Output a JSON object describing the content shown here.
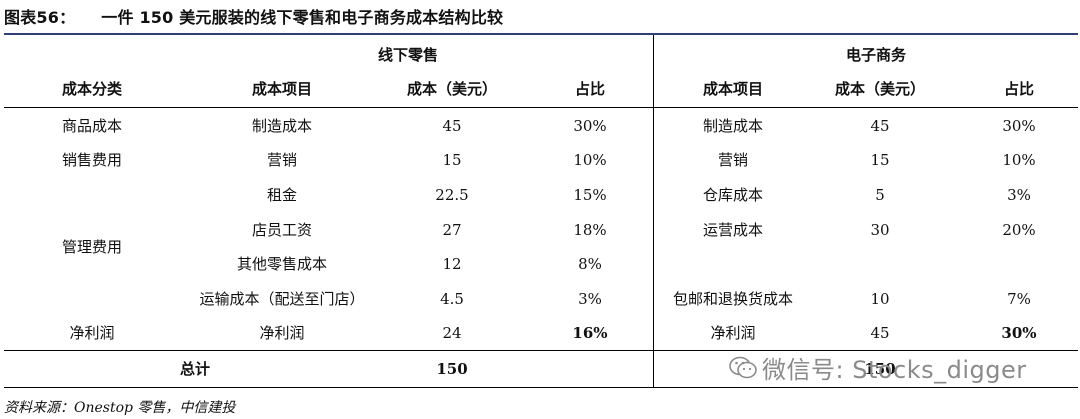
{
  "title": {
    "number": "图表56：",
    "text": "一件 150 美元服装的线下零售和电子商务成本结构比较"
  },
  "groups": {
    "offline": "线下零售",
    "online": "电子商务"
  },
  "headers": {
    "category": "成本分类",
    "offline_item": "成本项目",
    "offline_cost": "成本（美元）",
    "offline_ratio": "占比",
    "online_item": "成本项目",
    "online_cost": "成本（美元）",
    "online_ratio": "占比"
  },
  "categories": [
    "商品成本",
    "销售费用",
    "管理费用",
    "净利润"
  ],
  "offline_rows": [
    {
      "item": "制造成本",
      "cost": "45",
      "ratio": "30%"
    },
    {
      "item": "营销",
      "cost": "15",
      "ratio": "10%"
    },
    {
      "item": "租金",
      "cost": "22.5",
      "ratio": "15%"
    },
    {
      "item": "店员工资",
      "cost": "27",
      "ratio": "18%"
    },
    {
      "item": "其他零售成本",
      "cost": "12",
      "ratio": "8%"
    },
    {
      "item": "运输成本（配送至门店）",
      "cost": "4.5",
      "ratio": "3%"
    },
    {
      "item": "净利润",
      "cost": "24",
      "ratio": "16%"
    }
  ],
  "online_rows": [
    {
      "item": "制造成本",
      "cost": "45",
      "ratio": "30%"
    },
    {
      "item": "营销",
      "cost": "15",
      "ratio": "10%"
    },
    {
      "item": "仓库成本",
      "cost": "5",
      "ratio": "3%"
    },
    {
      "item": "运营成本",
      "cost": "30",
      "ratio": "20%"
    },
    {
      "item": "",
      "cost": "",
      "ratio": ""
    },
    {
      "item": "包邮和退换货成本",
      "cost": "10",
      "ratio": "7%"
    },
    {
      "item": "净利润",
      "cost": "45",
      "ratio": "30%"
    }
  ],
  "total": {
    "label": "总计",
    "offline": "150",
    "online": "150"
  },
  "source": "资料来源：Onestop 零售，中信建投",
  "watermark": "微信号: Stocks_digger",
  "colors": {
    "top_rule": "#2f3f78",
    "watermark": "#8a8a8a"
  }
}
